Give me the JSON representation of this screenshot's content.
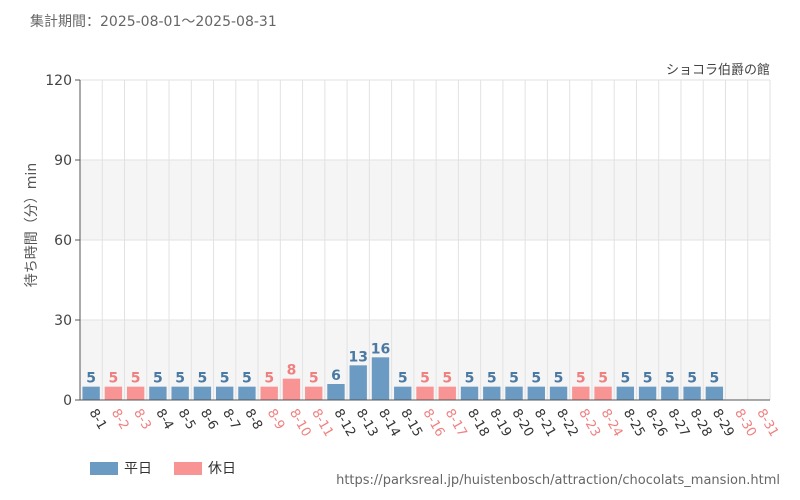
{
  "header": {
    "period_text": "集計期間：2025-08-01～2025-08-31",
    "attraction_name": "ショコラ伯爵の館"
  },
  "legend": {
    "weekday_label": "平日",
    "holiday_label": "休日"
  },
  "footer": {
    "source_url": "https://parksreal.jp/huistenbosch/attraction/chocolats_mansion.html"
  },
  "colors": {
    "weekday": "#6b9bc3",
    "holiday": "#f99495",
    "weekday_text": "#4a7aa3",
    "holiday_text": "#f08080",
    "band": "#f5f5f5",
    "grid": "#e2e2e2",
    "axis": "#555555"
  },
  "chart_data": {
    "type": "bar",
    "ylabel": "待ち時間（分）min",
    "ylim": [
      0,
      120
    ],
    "yticks": [
      "0",
      "30",
      "60",
      "90",
      "120"
    ],
    "grid": true,
    "legend_position": "bottom-left",
    "categories": [
      "8-1",
      "8-2",
      "8-3",
      "8-4",
      "8-5",
      "8-6",
      "8-7",
      "8-8",
      "8-9",
      "8-10",
      "8-11",
      "8-12",
      "8-13",
      "8-14",
      "8-15",
      "8-16",
      "8-17",
      "8-18",
      "8-19",
      "8-20",
      "8-21",
      "8-22",
      "8-23",
      "8-24",
      "8-25",
      "8-26",
      "8-27",
      "8-28",
      "8-29",
      "8-30",
      "8-31"
    ],
    "values": [
      5,
      5,
      5,
      5,
      5,
      5,
      5,
      5,
      5,
      8,
      5,
      6,
      13,
      16,
      5,
      5,
      5,
      5,
      5,
      5,
      5,
      5,
      5,
      5,
      5,
      5,
      5,
      5,
      5,
      null,
      null
    ],
    "day_type": [
      "weekday",
      "holiday",
      "holiday",
      "weekday",
      "weekday",
      "weekday",
      "weekday",
      "weekday",
      "holiday",
      "holiday",
      "holiday",
      "weekday",
      "weekday",
      "weekday",
      "weekday",
      "holiday",
      "holiday",
      "weekday",
      "weekday",
      "weekday",
      "weekday",
      "weekday",
      "holiday",
      "holiday",
      "weekday",
      "weekday",
      "weekday",
      "weekday",
      "weekday",
      "holiday",
      "holiday"
    ],
    "series": [
      {
        "name": "平日"
      },
      {
        "name": "休日"
      }
    ]
  }
}
